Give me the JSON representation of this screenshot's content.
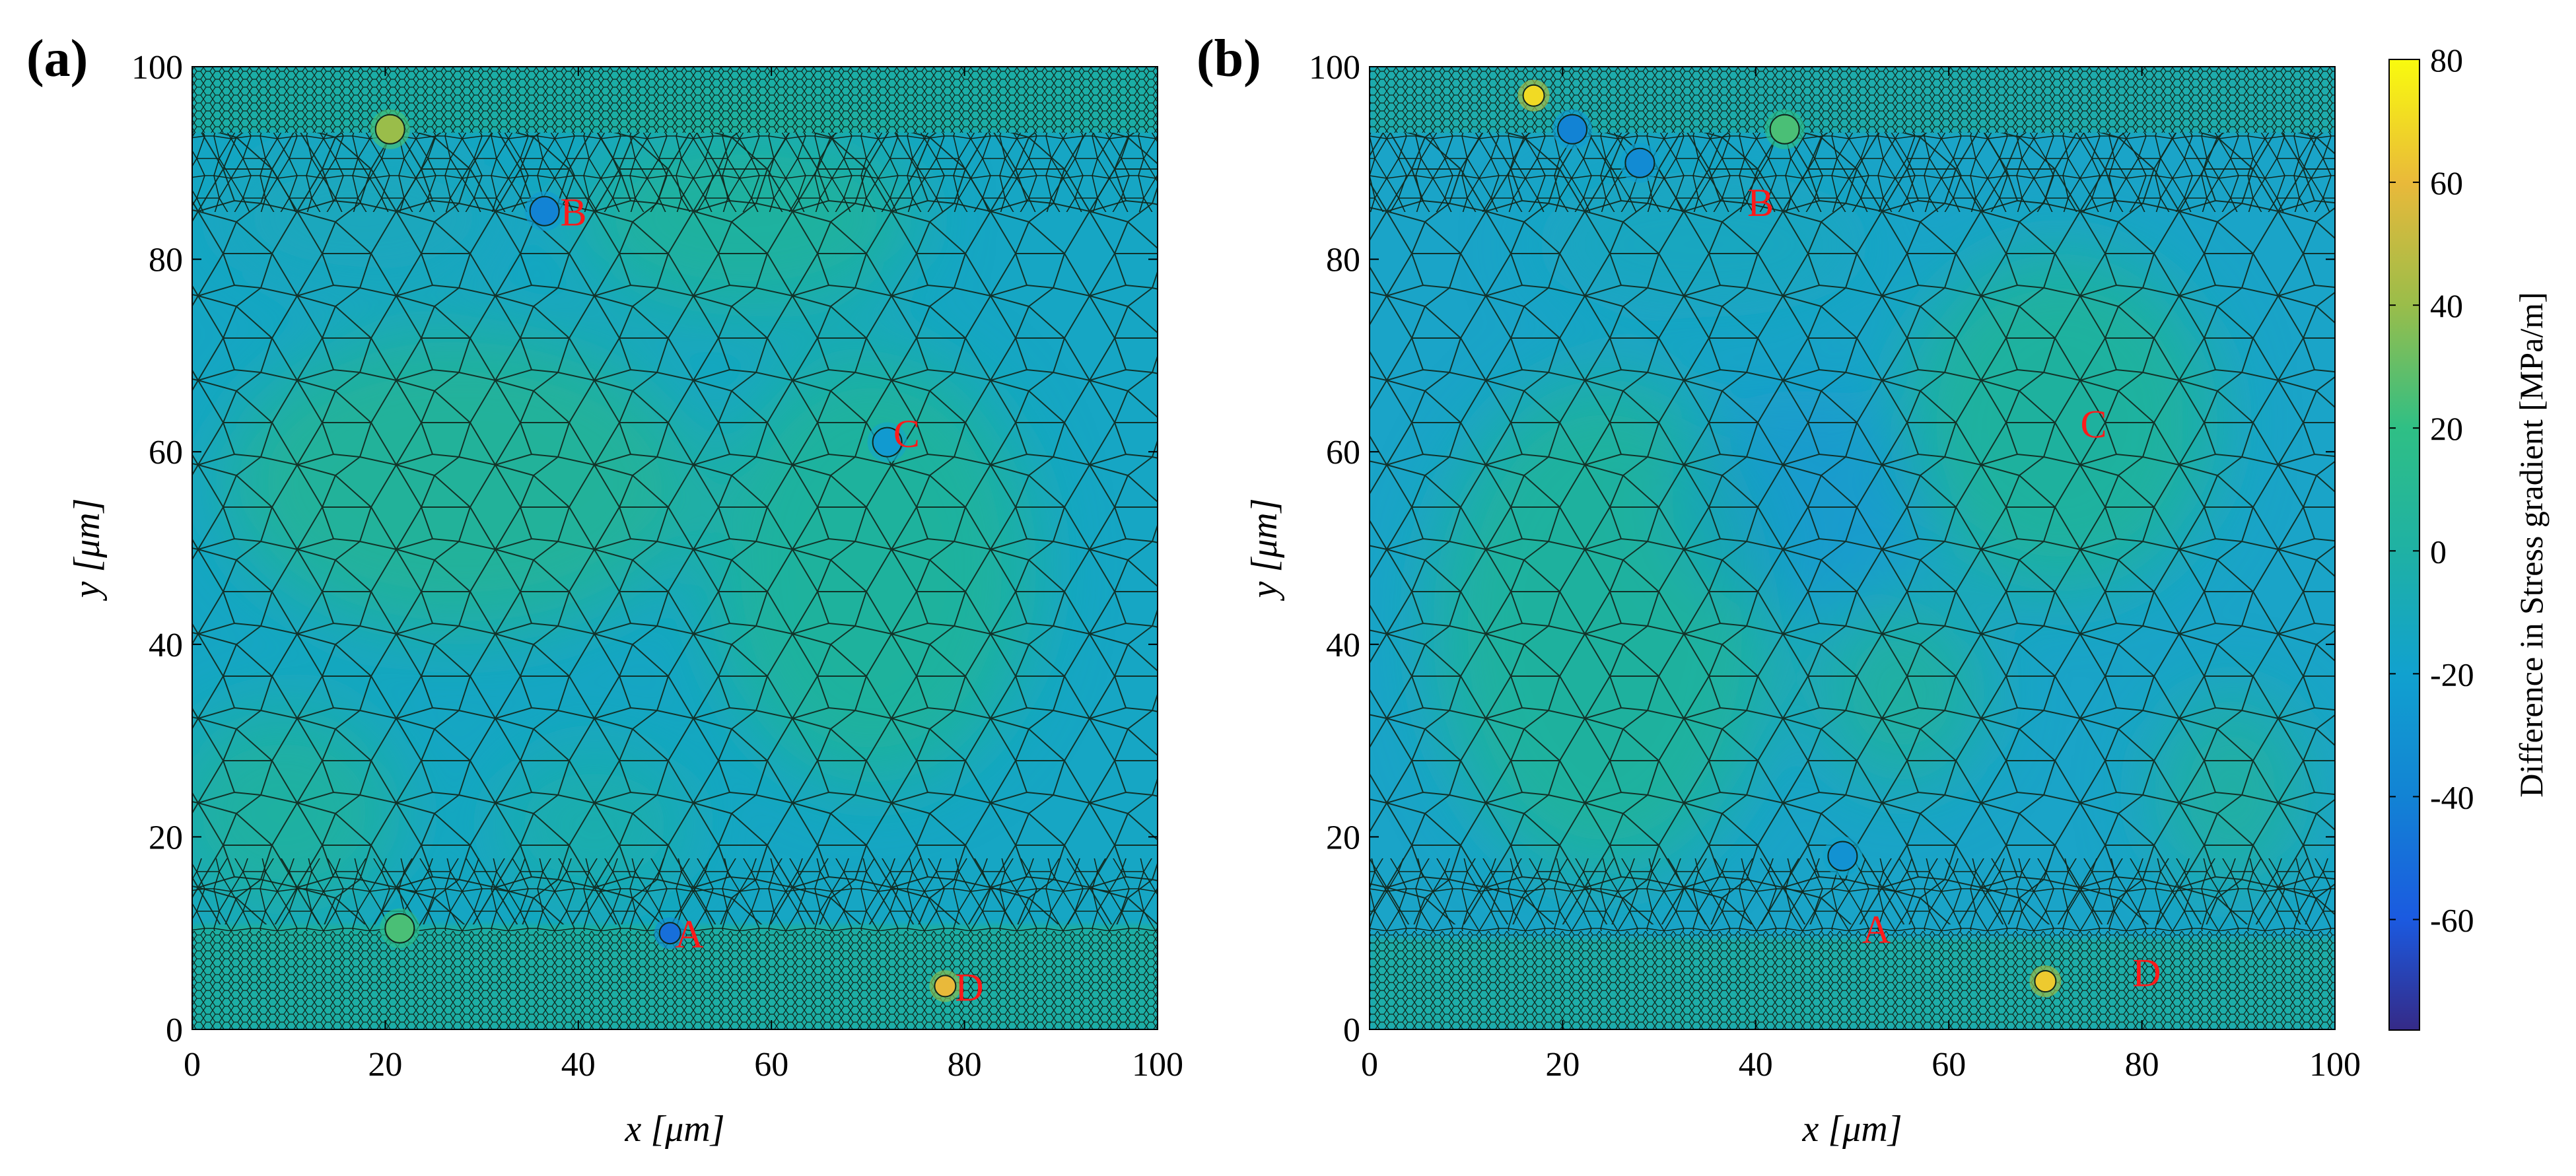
{
  "figure": {
    "colorbar_label": "Difference in Stress gradient [MPa/m]"
  },
  "chart_data": [
    {
      "type": "heatmap",
      "panel_label": "(a)",
      "xlabel": "x [μm]",
      "ylabel": "y [μm]",
      "xlim": [
        0,
        100
      ],
      "ylim": [
        0,
        100
      ],
      "xticks": [
        0,
        20,
        40,
        60,
        80,
        100
      ],
      "yticks": [
        0,
        20,
        40,
        60,
        80,
        100
      ],
      "annotations": [
        {
          "text": "A",
          "x": 51.5,
          "y": 10
        },
        {
          "text": "B",
          "x": 39.5,
          "y": 85
        },
        {
          "text": "C",
          "x": 74,
          "y": 62
        },
        {
          "text": "D",
          "x": 80.5,
          "y": 4.5
        }
      ],
      "hotspots": [
        {
          "x": 49.5,
          "y": 10,
          "value": -50
        },
        {
          "x": 36.5,
          "y": 85,
          "value": -40
        },
        {
          "x": 72,
          "y": 61,
          "value": -25
        },
        {
          "x": 78,
          "y": 4.5,
          "value": 60
        },
        {
          "x": 21.5,
          "y": 10.5,
          "value": 25
        },
        {
          "x": 20.5,
          "y": 93.5,
          "value": 40
        }
      ]
    },
    {
      "type": "heatmap",
      "panel_label": "(b)",
      "xlabel": "x [μm]",
      "ylabel": "y [μm]",
      "xlim": [
        0,
        100
      ],
      "ylim": [
        0,
        100
      ],
      "xticks": [
        0,
        20,
        40,
        60,
        80,
        100
      ],
      "yticks": [
        0,
        20,
        40,
        60,
        80,
        100
      ],
      "annotations": [
        {
          "text": "B",
          "x": 40.5,
          "y": 86
        },
        {
          "text": "C",
          "x": 75,
          "y": 63
        },
        {
          "text": "A",
          "x": 52.5,
          "y": 10.5
        },
        {
          "text": "D",
          "x": 80.5,
          "y": 6
        }
      ],
      "hotspots": [
        {
          "x": 21,
          "y": 93.5,
          "value": -40
        },
        {
          "x": 28,
          "y": 90,
          "value": -35
        },
        {
          "x": 43,
          "y": 93.5,
          "value": 25
        },
        {
          "x": 17,
          "y": 97,
          "value": 70
        },
        {
          "x": 49,
          "y": 18,
          "value": -30
        },
        {
          "x": 70,
          "y": 5,
          "value": 65
        }
      ]
    }
  ],
  "colorbar": {
    "min": -78,
    "max": 80,
    "ticks": [
      80,
      60,
      40,
      20,
      0,
      -20,
      -40,
      -60
    ],
    "colors": {
      "c_neg78": "#352a87",
      "c_neg60": "#1b5ae0",
      "c_neg40": "#1283d4",
      "c_neg20": "#11a1cf",
      "c_0": "#1fb1a4",
      "c_20": "#2fbf85",
      "c_40": "#9abd4a",
      "c_60": "#e9b93a",
      "c_80": "#f9fb0e"
    }
  },
  "colors": {
    "annotation": "#ff1a1a",
    "grain_boundary": "#10261c",
    "field_low": "#16a6c4",
    "field_mid": "#1fb1a4"
  }
}
